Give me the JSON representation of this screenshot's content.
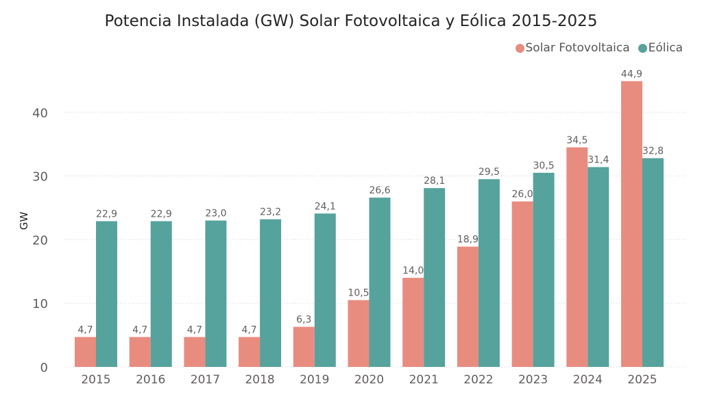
{
  "chart_data": {
    "type": "bar",
    "title": "Potencia Instalada (GW) Solar Fotovoltaica y Eólica 2015-2025",
    "xlabel": "",
    "ylabel": "GW",
    "ylim": [
      0,
      45
    ],
    "yticks": [
      0,
      10,
      20,
      30,
      40
    ],
    "grid": true,
    "legend": "top-right",
    "categories": [
      "2015",
      "2016",
      "2017",
      "2018",
      "2019",
      "2020",
      "2021",
      "2022",
      "2023",
      "2024",
      "2025"
    ],
    "series": [
      {
        "name": "Solar Fotovoltaica",
        "color": "#E88C7F",
        "values": [
          4.7,
          4.7,
          4.7,
          4.7,
          6.3,
          10.5,
          14.0,
          18.9,
          26.0,
          34.5,
          44.9
        ],
        "labels": [
          "4,7",
          "4,7",
          "4,7",
          "4,7",
          "6,3",
          "10,5",
          "14,0",
          "18,9",
          "26,0",
          "34,5",
          "44,9"
        ]
      },
      {
        "name": "Eólica",
        "color": "#56A29C",
        "values": [
          22.9,
          22.9,
          23.0,
          23.2,
          24.1,
          26.6,
          28.1,
          29.5,
          30.5,
          31.4,
          32.8
        ],
        "labels": [
          "22,9",
          "22,9",
          "23,0",
          "23,2",
          "24,1",
          "26,6",
          "28,1",
          "29,5",
          "30,5",
          "31,4",
          "32,8"
        ]
      }
    ]
  }
}
